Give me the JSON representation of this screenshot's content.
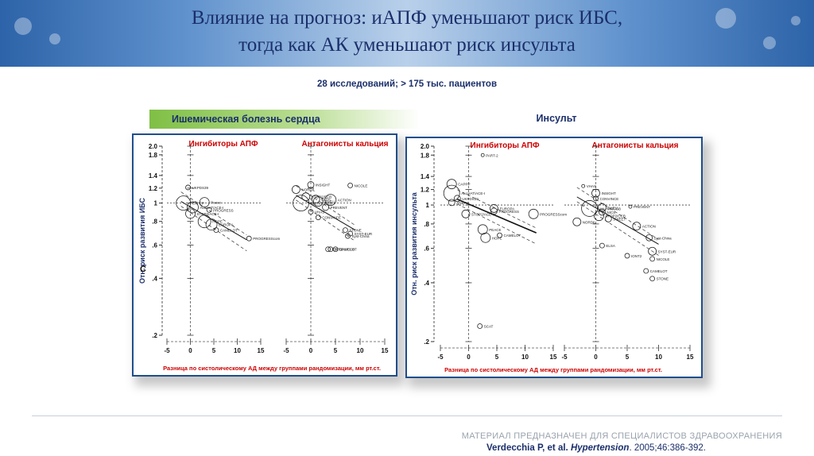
{
  "slide": {
    "title_line1": "Влияние на прогноз: иАПФ уменьшают риск ИБС,",
    "title_line2": "тогда как АК уменьшают риск инсульта",
    "subtitle": "28 исследований; > 175 тыс. пациентов",
    "section_ibs": "Ишемическая болезнь сердца",
    "section_stroke": "Инсульт",
    "disclaimer": "МАТЕРИАЛ ПРЕДНАЗНАЧЕН ДЛЯ СПЕЦИАЛИСТОВ ЗДРАВООХРАНЕНИЯ",
    "citation_authors": "Verdecchia P, et al. ",
    "citation_journal": "Hypertension",
    "citation_rest": ". 2005;46:386-392.",
    "colors": {
      "title": "#1b2f6b",
      "panel_border": "#1f4e8c",
      "label_red": "#cc0000",
      "green_band": "#7fbf45"
    }
  },
  "chart_data": [
    {
      "type": "scatter",
      "panel": "ibs",
      "ylabel": "Отн. риск развития ИБС",
      "xlabel": "Разница по систолическому АД между группами рандомизации, мм рт.ст.",
      "panel_letter": "C",
      "ylim": [
        0.2,
        2.0
      ],
      "log_y": true,
      "y_ticks": [
        ".2",
        ".4",
        ".6",
        ".8",
        "1",
        "1.2",
        "1.4",
        "1.8",
        "2.0"
      ],
      "subplots": [
        {
          "title": "Ингибиторы АПФ",
          "xlim": [
            -5,
            15
          ],
          "x_ticks": [
            "-5",
            "0",
            "5",
            "10",
            "15"
          ],
          "points": [
            {
              "label": "UKPDS39",
              "x": -0.5,
              "y": 1.21,
              "size": 3
            },
            {
              "label": "CAPPP",
              "x": -1.5,
              "y": 1.0,
              "size": 9
            },
            {
              "label": "ALLHAT/ACE-I",
              "x": 0.5,
              "y": 0.95,
              "size": 7
            },
            {
              "label": "Peace",
              "x": 3.0,
              "y": 1.01,
              "size": 6
            },
            {
              "label": "PROGRESS",
              "x": 4.0,
              "y": 0.92,
              "size": 3
            },
            {
              "label": "STOP2/ACE-I",
              "x": 0.0,
              "y": 0.88,
              "size": 6
            },
            {
              "label": "HOPE",
              "x": 3.0,
              "y": 0.8,
              "size": 8
            },
            {
              "label": "EUROPA",
              "x": 4.5,
              "y": 0.77,
              "size": 7
            },
            {
              "label": "CAMELOT",
              "x": 5.5,
              "y": 0.72,
              "size": 3
            },
            {
              "label": "PROGRESScom",
              "x": 12.5,
              "y": 0.65,
              "size": 3
            }
          ],
          "regression": {
            "x": [
              -2,
              12
            ],
            "y": [
              1.02,
              0.64
            ]
          }
        },
        {
          "title": "Антагонисты кальция",
          "xlim": [
            -5,
            15
          ],
          "x_ticks": [
            "-5",
            "0",
            "5",
            "10",
            "15"
          ],
          "points": [
            {
              "label": "INSIGHT",
              "x": 0.0,
              "y": 1.25,
              "size": 4
            },
            {
              "label": "NICOLE",
              "x": 8.0,
              "y": 1.24,
              "size": 3
            },
            {
              "label": "NORDIL",
              "x": -3.0,
              "y": 1.18,
              "size": 5
            },
            {
              "label": "STOP2/CCB",
              "x": -1.0,
              "y": 1.08,
              "size": 5
            },
            {
              "label": "ELSA",
              "x": 1.0,
              "y": 1.05,
              "size": 5
            },
            {
              "label": "ACTION",
              "x": 4.0,
              "y": 1.04,
              "size": 7
            },
            {
              "label": "ALLHAT/CCB",
              "x": -2.0,
              "y": 1.0,
              "size": 10
            },
            {
              "label": "SHELL",
              "x": 1.5,
              "y": 1.02,
              "size": 6
            },
            {
              "label": "PREVENT",
              "x": 3.0,
              "y": 0.95,
              "size": 4
            },
            {
              "label": "VHAS",
              "x": 0.0,
              "y": 0.9,
              "size": 3
            },
            {
              "label": "CONVINCE",
              "x": 1.5,
              "y": 0.84,
              "size": 3
            },
            {
              "label": "STONE",
              "x": 7.0,
              "y": 0.72,
              "size": 3
            },
            {
              "label": "SYST-EUR",
              "x": 8.0,
              "y": 0.69,
              "size": 3
            },
            {
              "label": "Syst-China",
              "x": 7.5,
              "y": 0.67,
              "size": 3
            },
            {
              "label": "STOP2/CCB",
              "x": 4.0,
              "y": 0.57,
              "size": 3
            },
            {
              "label": "IONT2",
              "x": 3.5,
              "y": 0.57,
              "size": 3
            },
            {
              "label": "CAMELOT",
              "x": 5.0,
              "y": 0.57,
              "size": 3
            }
          ],
          "regression": {
            "x": [
              -3,
              9
            ],
            "y": [
              1.1,
              0.72
            ]
          }
        }
      ]
    },
    {
      "type": "scatter",
      "panel": "stroke",
      "ylabel": "Отн. риск развития инсульта",
      "xlabel": "Разница по систолическому АД между группами рандомизации, мм рт.ст.",
      "ylim": [
        0.2,
        2.0
      ],
      "log_y": true,
      "y_ticks": [
        ".2",
        ".4",
        ".6",
        ".8",
        "1",
        "1.2",
        "1.4",
        "1.8",
        "2.0"
      ],
      "subplots": [
        {
          "title": "Ингибиторы АПФ",
          "xlim": [
            -5,
            15
          ],
          "x_ticks": [
            "-5",
            "0",
            "5",
            "10",
            "15"
          ],
          "points": [
            {
              "label": "PART-2",
              "x": 2.5,
              "y": 1.8,
              "size": 2
            },
            {
              "label": "CAPPP",
              "x": -3.0,
              "y": 1.28,
              "size": 6
            },
            {
              "label": "ALLHAT/ACE-I",
              "x": -3.0,
              "y": 1.15,
              "size": 10
            },
            {
              "label": "UKPDS39",
              "x": -2.0,
              "y": 1.08,
              "size": 4
            },
            {
              "label": "ANBP2",
              "x": -3.0,
              "y": 1.03,
              "size": 4
            },
            {
              "label": "EUROPA",
              "x": 4.5,
              "y": 0.96,
              "size": 5
            },
            {
              "label": "STOP2/ACE-I",
              "x": -0.5,
              "y": 0.9,
              "size": 5
            },
            {
              "label": "PROGRESS",
              "x": 4.5,
              "y": 0.93,
              "size": 4
            },
            {
              "label": "PROGRESScom",
              "x": 11.5,
              "y": 0.9,
              "size": 6
            },
            {
              "label": "PEACE",
              "x": 2.5,
              "y": 0.75,
              "size": 6
            },
            {
              "label": "HOPE",
              "x": 3.0,
              "y": 0.68,
              "size": 6
            },
            {
              "label": "CAMELOT",
              "x": 5.5,
              "y": 0.7,
              "size": 3
            },
            {
              "label": "SCAT",
              "x": 2.0,
              "y": 0.24,
              "size": 3
            }
          ],
          "regression": {
            "x": [
              -2,
              12
            ],
            "y": [
              1.07,
              0.72
            ]
          }
        },
        {
          "title": "Антагонисты кальция",
          "xlim": [
            -5,
            15
          ],
          "x_ticks": [
            "-5",
            "0",
            "5",
            "10",
            "15"
          ],
          "points": [
            {
              "label": "VHAS",
              "x": -2.0,
              "y": 1.25,
              "size": 2
            },
            {
              "label": "INSIGHT",
              "x": 0.0,
              "y": 1.15,
              "size": 5
            },
            {
              "label": "CONVINCE",
              "x": 0.0,
              "y": 1.08,
              "size": 3
            },
            {
              "label": "ALLHAT/CCB",
              "x": -1.0,
              "y": 0.96,
              "size": 10
            },
            {
              "label": "SHELL",
              "x": 1.0,
              "y": 0.97,
              "size": 5
            },
            {
              "label": "PREVENT",
              "x": 5.5,
              "y": 0.98,
              "size": 2
            },
            {
              "label": "NICS",
              "x": 1.0,
              "y": 0.92,
              "size": 4
            },
            {
              "label": "STOP2/CCB",
              "x": 0.5,
              "y": 0.88,
              "size": 6
            },
            {
              "label": "SWEET",
              "x": 2.0,
              "y": 0.85,
              "size": 4
            },
            {
              "label": "NORDIL",
              "x": -3.0,
              "y": 0.82,
              "size": 5
            },
            {
              "label": "ACTION",
              "x": 6.5,
              "y": 0.78,
              "size": 5
            },
            {
              "label": "Syst-China",
              "x": 8.5,
              "y": 0.68,
              "size": 4
            },
            {
              "label": "ELSA",
              "x": 1.0,
              "y": 0.62,
              "size": 3
            },
            {
              "label": "IONT2",
              "x": 5.0,
              "y": 0.55,
              "size": 3
            },
            {
              "label": "SYST-EUR",
              "x": 9.0,
              "y": 0.58,
              "size": 5
            },
            {
              "label": "NICOLE",
              "x": 9.0,
              "y": 0.53,
              "size": 3
            },
            {
              "label": "CAMELOT",
              "x": 8.0,
              "y": 0.46,
              "size": 3
            },
            {
              "label": "STONE",
              "x": 9.0,
              "y": 0.42,
              "size": 3
            }
          ],
          "regression": {
            "x": [
              -3,
              10
            ],
            "y": [
              1.1,
              0.63
            ]
          }
        }
      ]
    }
  ]
}
